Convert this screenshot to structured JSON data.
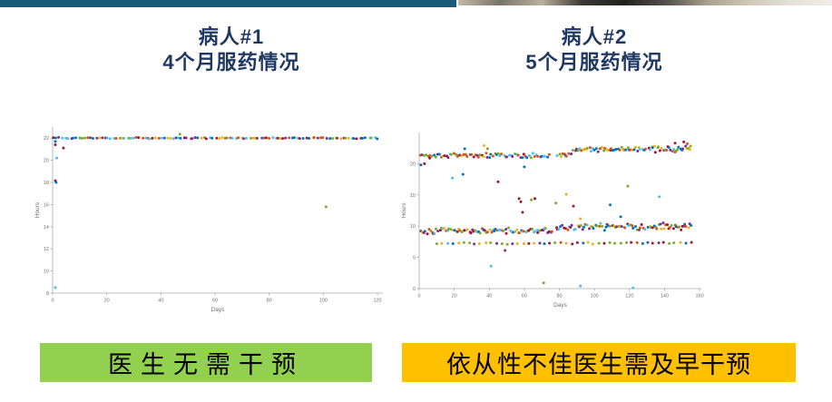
{
  "decor": {
    "top_bar_color": "#195a78",
    "photo_strip_stops": [
      "#b3a document",
      "#b3a78f"
    ]
  },
  "photo_strip": {
    "stops": [
      "#c4bba6",
      "#7a7468",
      "#b9b09c",
      "#3a3732",
      "#23211e",
      "#55504a",
      "#a89f8c",
      "#cfc8b8",
      "#e4e0d6",
      "#efece6"
    ]
  },
  "title_color": "#1f3864",
  "panels": [
    {
      "title_line1": "病人#1",
      "title_line2": "4个月服药情况",
      "banner": {
        "label": "医生无需干预",
        "color": "#92d050"
      }
    },
    {
      "title_line1": "病人#2",
      "title_line2": "5个月服药情况",
      "banner": {
        "label": "依从性不佳医生需及早干预",
        "color": "#ffc000"
      }
    }
  ],
  "chart_data": [
    {
      "type": "scatter",
      "title": "病人#1 4个月服药情况",
      "xlabel": "Days",
      "ylabel": "Hours",
      "xlim": [
        0,
        122
      ],
      "ylim": [
        8,
        23
      ],
      "xticks": [
        0,
        20,
        40,
        60,
        80,
        100,
        120
      ],
      "yticks": [
        8,
        10,
        12,
        14,
        16,
        18,
        20,
        22
      ],
      "grid": false,
      "legend": "none",
      "axis_color": "#aaaaaa",
      "tick_color": "#707070",
      "marker_radius": 1.5,
      "seed": 7,
      "palette": {
        "blue": "#0072BD",
        "orange": "#D95319",
        "yellow": "#EDB120",
        "purple": "#7E2F8E",
        "green": "#77AC30",
        "cyan": "#4DBEEE",
        "red": "#A2142F"
      },
      "bands": [
        {
          "x_min": 0.5,
          "x_max": 120,
          "count": 115,
          "y": 22.0,
          "y_jitter": 0.06
        }
      ],
      "outliers": [
        [
          1,
          21.7,
          "blue"
        ],
        [
          1,
          21.4,
          "red"
        ],
        [
          4,
          21.1,
          "red"
        ],
        [
          1.5,
          20.2,
          "cyan"
        ],
        [
          1,
          18.15,
          "red"
        ],
        [
          1.3,
          18.0,
          "blue"
        ],
        [
          1,
          8.5,
          "cyan"
        ],
        [
          47,
          22.35,
          "green"
        ],
        [
          101,
          15.8,
          "green"
        ]
      ]
    },
    {
      "type": "scatter",
      "title": "病人#2 5个月服药情况",
      "xlabel": "Days",
      "ylabel": "Hours",
      "xlim": [
        0,
        161
      ],
      "ylim": [
        0,
        25
      ],
      "xticks": [
        0,
        20,
        40,
        60,
        80,
        100,
        120,
        140,
        160
      ],
      "yticks": [
        0,
        5,
        10,
        15,
        20
      ],
      "grid": false,
      "legend": "none",
      "axis_color": "#aaaaaa",
      "tick_color": "#707070",
      "marker_radius": 1.5,
      "seed": 13,
      "palette": {
        "blue": "#0072BD",
        "orange": "#D95319",
        "yellow": "#EDB120",
        "purple": "#7E2F8E",
        "green": "#77AC30",
        "cyan": "#4DBEEE",
        "red": "#A2142F"
      },
      "bands": [
        {
          "x_min": 1,
          "x_max": 74,
          "count": 72,
          "y": 21.3,
          "y_jitter": 0.35
        },
        {
          "x_min": 79,
          "x_max": 87,
          "count": 10,
          "y": 21.4,
          "y_jitter": 0.3
        },
        {
          "x_min": 88,
          "x_max": 129,
          "count": 46,
          "y": 22.3,
          "y_jitter": 0.35
        },
        {
          "x_min": 131,
          "x_max": 155,
          "count": 30,
          "y": 22.4,
          "y_jitter": 0.5
        },
        {
          "x_min": 1,
          "x_max": 76,
          "count": 85,
          "y": 9.2,
          "y_jitter": 0.5
        },
        {
          "x_min": 78,
          "x_max": 129,
          "count": 55,
          "y": 9.9,
          "y_jitter": 0.5
        },
        {
          "x_min": 131,
          "x_max": 155,
          "count": 30,
          "y": 10.0,
          "y_jitter": 0.6
        },
        {
          "x_min": 10,
          "x_max": 155,
          "count": 48,
          "y": 7.25,
          "y_jitter": 0.15
        }
      ],
      "outliers": [
        [
          1,
          19.8,
          "blue"
        ],
        [
          3,
          20.0,
          "red"
        ],
        [
          6,
          20.9,
          "red"
        ],
        [
          19,
          17.7,
          "cyan"
        ],
        [
          25,
          18.3,
          "blue"
        ],
        [
          26,
          22.4,
          "blue"
        ],
        [
          37,
          22.9,
          "yellow"
        ],
        [
          39,
          22.4,
          "green"
        ],
        [
          41,
          3.6,
          "cyan"
        ],
        [
          45,
          17.1,
          "red"
        ],
        [
          49,
          6.1,
          "purple"
        ],
        [
          57,
          14.4,
          "red"
        ],
        [
          58,
          13.9,
          "red"
        ],
        [
          59,
          12.2,
          "red"
        ],
        [
          60,
          19.5,
          "blue"
        ],
        [
          64,
          14.2,
          "green"
        ],
        [
          66,
          14.4,
          "red"
        ],
        [
          71,
          0.9,
          "green"
        ],
        [
          78,
          13.7,
          "green"
        ],
        [
          84,
          15.1,
          "yellow"
        ],
        [
          88,
          13.2,
          "red"
        ],
        [
          92,
          11.2,
          "yellow"
        ],
        [
          92,
          0.4,
          "cyan"
        ],
        [
          109,
          13.4,
          "blue"
        ],
        [
          115,
          11.5,
          "blue"
        ],
        [
          119,
          16.4,
          "green"
        ],
        [
          122,
          0.1,
          "cyan"
        ],
        [
          137,
          14.7,
          "cyan"
        ],
        [
          146,
          23.3,
          "red"
        ],
        [
          151,
          23.5,
          "red"
        ],
        [
          153,
          23.2,
          "orange"
        ]
      ]
    }
  ]
}
